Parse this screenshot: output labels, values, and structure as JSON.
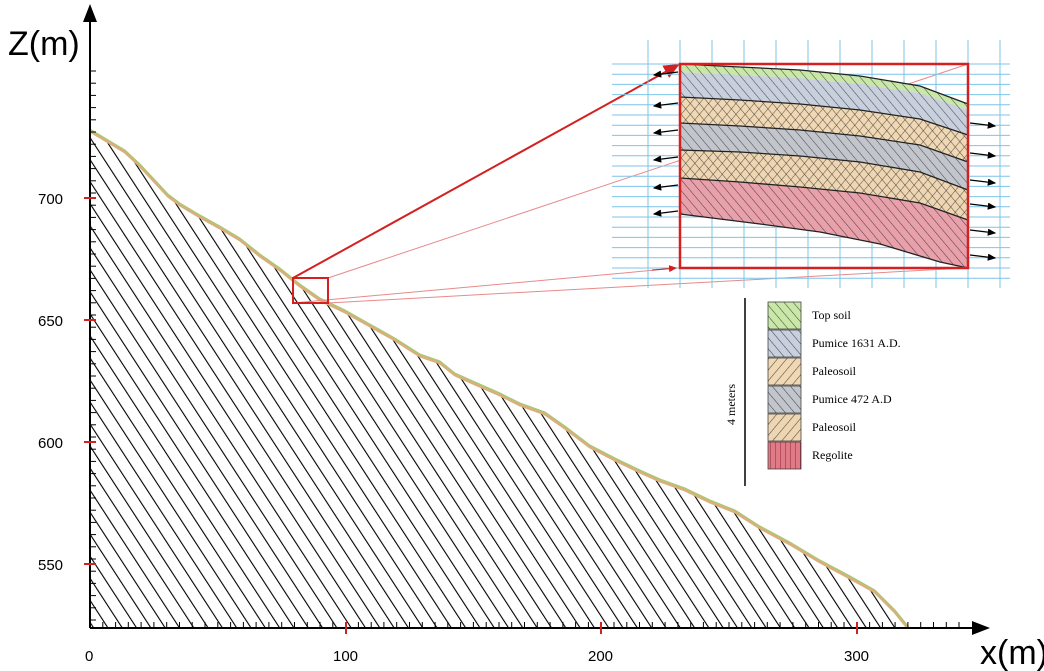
{
  "axes": {
    "z_label": "Z(m)",
    "x_label": "x(m)",
    "z_ticks": [
      "700",
      "650",
      "600",
      "550"
    ],
    "x_ticks": [
      "0",
      "100",
      "200",
      "300"
    ]
  },
  "inset": {
    "scale_label": "4 meters",
    "legend": [
      {
        "label": "Top soil",
        "color": "#c9e8a8"
      },
      {
        "label": "Pumice 1631 A.D.",
        "color": "#c8d0de"
      },
      {
        "label": "Paleosoil",
        "color": "#f0d8b4"
      },
      {
        "label": "Pumice 472 A.D",
        "color": "#c2c6cc"
      },
      {
        "label": "Paleosoil",
        "color": "#efd6b2"
      },
      {
        "label": "Regolite",
        "color": "#e07a86"
      }
    ]
  },
  "colors": {
    "highlight": "#d42020",
    "grid": "#7cc4ea",
    "hatch": "#000000"
  }
}
